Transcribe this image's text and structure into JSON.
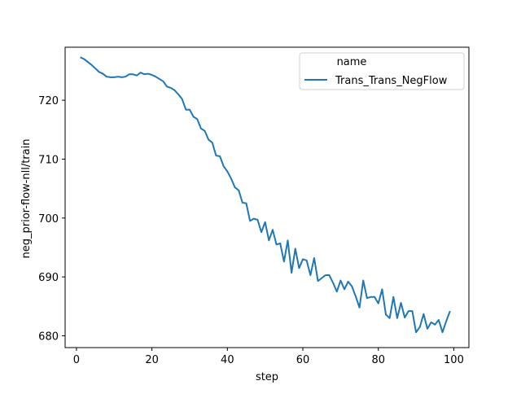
{
  "chart_data": {
    "type": "line",
    "title": "",
    "xlabel": "step",
    "ylabel": "neg_prior-flow-nll/train",
    "xlim": [
      -3,
      104
    ],
    "ylim": [
      678,
      729
    ],
    "xticks": [
      0,
      20,
      40,
      60,
      80,
      100
    ],
    "yticks": [
      680,
      690,
      700,
      710,
      720
    ],
    "grid": false,
    "legend": {
      "title": "name",
      "placement": "top-right"
    },
    "colors": {
      "series": "#1f77b4",
      "axes": "#000000",
      "legend_border": "#cccccc"
    },
    "series": [
      {
        "name": "Trans_Trans_NegFlow",
        "x": [
          1,
          2,
          3,
          4,
          5,
          6,
          7,
          8,
          9,
          10,
          11,
          12,
          13,
          14,
          15,
          16,
          17,
          18,
          19,
          20,
          21,
          22,
          23,
          24,
          25,
          26,
          27,
          28,
          29,
          30,
          31,
          32,
          33,
          34,
          35,
          36,
          37,
          38,
          39,
          40,
          41,
          42,
          43,
          44,
          45,
          46,
          47,
          48,
          49,
          50,
          51,
          52,
          53,
          54,
          55,
          56,
          57,
          58,
          59,
          60,
          61,
          62,
          63,
          64,
          65,
          66,
          67,
          68,
          69,
          70,
          71,
          72,
          73,
          74,
          75,
          76,
          77,
          78,
          79,
          80,
          81,
          82,
          83,
          84,
          85,
          86,
          87,
          88,
          89,
          90,
          91,
          92,
          93,
          94,
          95,
          96,
          97,
          98,
          99
        ],
        "values": [
          727.3,
          727.0,
          726.5,
          726.0,
          725.4,
          724.8,
          724.5,
          724.0,
          723.9,
          723.9,
          724.0,
          723.9,
          724.0,
          724.4,
          724.4,
          724.2,
          724.7,
          724.4,
          724.5,
          724.3,
          724.0,
          723.6,
          723.2,
          722.3,
          722.1,
          721.7,
          721.0,
          720.2,
          718.4,
          718.4,
          717.2,
          716.8,
          715.2,
          714.8,
          713.3,
          712.8,
          710.6,
          710.5,
          708.8,
          707.9,
          706.7,
          705.2,
          704.7,
          702.6,
          702.5,
          699.5,
          699.9,
          699.7,
          697.6,
          699.3,
          696.2,
          698.0,
          695.5,
          695.7,
          692.6,
          696.2,
          690.7,
          694.8,
          691.5,
          693.0,
          692.8,
          690.3,
          693.2,
          689.3,
          689.8,
          690.3,
          690.3,
          689.0,
          687.5,
          689.4,
          687.9,
          689.2,
          688.4,
          686.7,
          684.8,
          689.4,
          686.4,
          686.6,
          686.6,
          685.5,
          687.9,
          683.6,
          683.0,
          686.6,
          683.0,
          685.6,
          683.1,
          684.2,
          684.2,
          680.6,
          681.5,
          683.7,
          681.2,
          682.3,
          681.9,
          682.7,
          680.6,
          682.5,
          684.2
        ]
      }
    ]
  }
}
